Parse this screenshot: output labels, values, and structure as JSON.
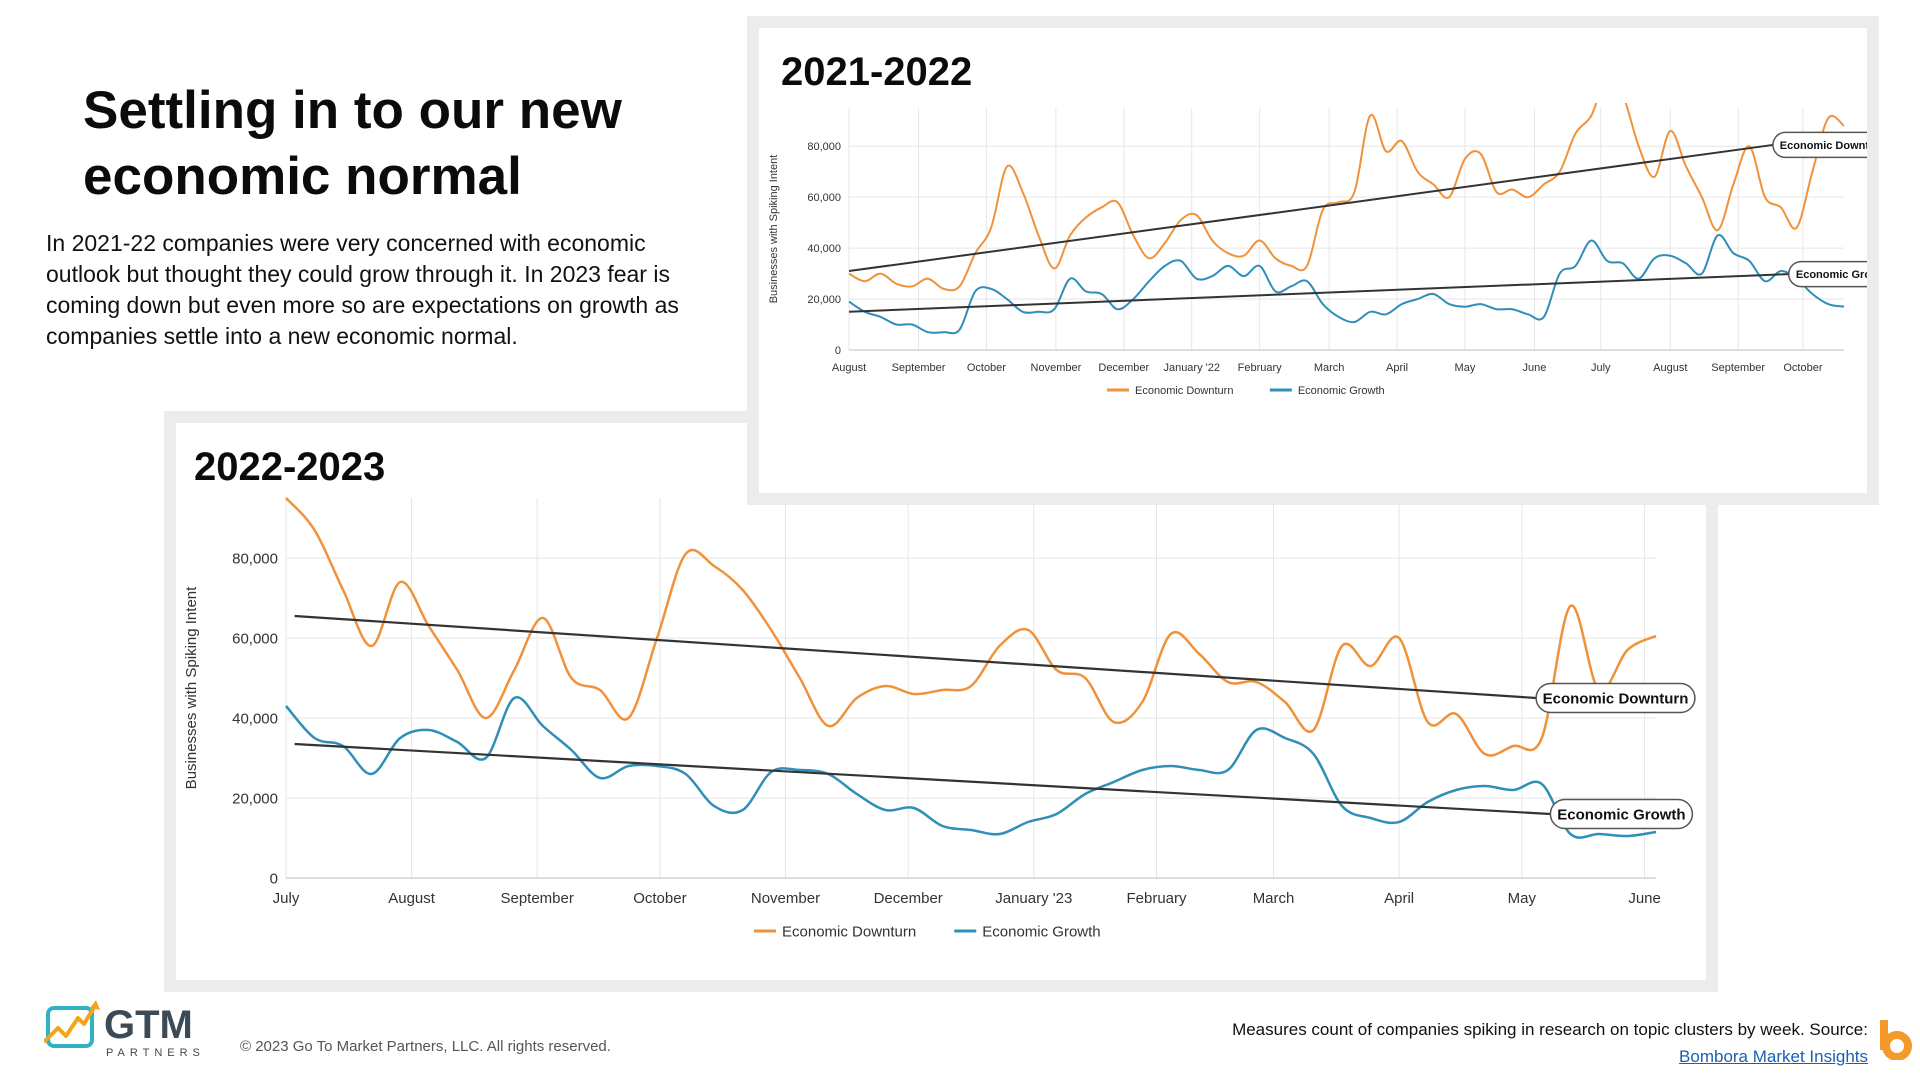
{
  "slide": {
    "title": "Settling in to our new economic normal",
    "description": "In 2021-22 companies were very concerned with economic outlook but thought they could grow through it. In 2023 fear is coming down but even more so are expectations on growth as companies settle into a new economic normal.",
    "copyright": "© 2023 Go To Market Partners, LLC. All rights reserved.",
    "source_text": "Measures count of companies spiking in research on topic clusters by week. Source: ",
    "source_link": "Bombora Market Insights",
    "logo": {
      "brand": "GTM",
      "sub": "PARTNERS"
    },
    "colors": {
      "downturn": "#f0923b",
      "growth": "#2f8fb8",
      "trend": "#333333",
      "accent_logo": "#f5a31a"
    }
  },
  "chart_data": [
    {
      "panel_label": "2022-2023",
      "type": "line",
      "ylabel": "Businesses with Spiking Intent",
      "ylim": [
        0,
        95000
      ],
      "yticks": [
        "0",
        "20,000",
        "40,000",
        "60,000",
        "80,000"
      ],
      "ytick_values": [
        0,
        20000,
        40000,
        60000,
        80000
      ],
      "x_labels": [
        "July",
        "August",
        "September",
        "October",
        "November",
        "December",
        "January '23",
        "February",
        "March",
        "April",
        "May",
        "June"
      ],
      "x_label_weeks": [
        0,
        4.4,
        8.8,
        13.1,
        17.5,
        21.8,
        26.2,
        30.5,
        34.6,
        39.0,
        43.3,
        47.6
      ],
      "weeks": [
        0,
        1,
        2,
        3,
        4,
        5,
        6,
        7,
        8,
        9,
        10,
        11,
        12,
        13,
        14,
        15,
        16,
        17,
        18,
        19,
        20,
        21,
        22,
        23,
        24,
        25,
        26,
        27,
        28,
        29,
        30,
        31,
        32,
        33,
        34,
        35,
        36,
        37,
        38,
        39,
        40,
        41,
        42,
        43,
        44,
        45,
        46,
        47,
        48
      ],
      "series": [
        {
          "name": "Economic Downturn",
          "values": [
            95000,
            87000,
            72000,
            58000,
            74000,
            63000,
            52000,
            40000,
            52000,
            65000,
            50000,
            47000,
            40000,
            60000,
            81000,
            78000,
            72000,
            62000,
            50000,
            38000,
            45000,
            48000,
            46000,
            47000,
            48000,
            58000,
            62000,
            52000,
            50000,
            39000,
            44000,
            61000,
            56000,
            49000,
            49000,
            44000,
            37000,
            58000,
            53000,
            60000,
            39000,
            41000,
            31000,
            33000,
            35000,
            68000,
            47000,
            57000,
            60500
          ]
        },
        {
          "name": "Economic Growth",
          "values": [
            43000,
            35000,
            33000,
            26000,
            35000,
            37000,
            34000,
            30000,
            45000,
            38000,
            32000,
            25000,
            28000,
            28000,
            26000,
            18000,
            17000,
            26500,
            27000,
            26000,
            21000,
            17000,
            17500,
            13000,
            12000,
            11000,
            14000,
            16000,
            21000,
            24000,
            27000,
            28000,
            27000,
            27000,
            37000,
            35000,
            31000,
            18000,
            15000,
            14000,
            19000,
            22000,
            23000,
            22000,
            23500,
            11000,
            11000,
            10500,
            11500
          ]
        }
      ],
      "trendlines": [
        {
          "name": "Economic Downturn",
          "label": "Economic Downturn",
          "from": [
            0.3,
            65500
          ],
          "to": [
            43.8,
            45000
          ]
        },
        {
          "name": "Economic Growth",
          "label": "Economic Growth",
          "from": [
            0.3,
            33500
          ],
          "to": [
            44.3,
            16000
          ]
        }
      ],
      "legend": [
        "Economic Downturn",
        "Economic Growth"
      ],
      "legend_placement": "bottom-center",
      "grid": true
    },
    {
      "panel_label": "2021-2022",
      "type": "line",
      "ylabel": "Businesses with Spiking Intent",
      "ylim": [
        0,
        95000
      ],
      "yticks": [
        "0",
        "20,000",
        "40,000",
        "60,000",
        "80,000"
      ],
      "ytick_values": [
        0,
        20000,
        40000,
        60000,
        80000
      ],
      "x_labels": [
        "August",
        "September",
        "October",
        "November",
        "December",
        "January '22",
        "February",
        "March",
        "April",
        "May",
        "June",
        "July",
        "August",
        "September",
        "October"
      ],
      "x_label_weeks": [
        0,
        4.4,
        8.7,
        13.1,
        17.4,
        21.7,
        26.0,
        30.4,
        34.7,
        39.0,
        43.4,
        47.6,
        52.0,
        56.3,
        60.4
      ],
      "weeks": [
        0,
        1,
        2,
        3,
        4,
        5,
        6,
        7,
        8,
        9,
        10,
        11,
        12,
        13,
        14,
        15,
        16,
        17,
        18,
        19,
        20,
        21,
        22,
        23,
        24,
        25,
        26,
        27,
        28,
        29,
        30,
        31,
        32,
        33,
        34,
        35,
        36,
        37,
        38,
        39,
        40,
        41,
        42,
        43,
        44,
        45,
        46,
        47,
        48,
        49,
        50,
        51,
        52,
        53,
        54,
        55,
        56,
        57,
        58,
        59,
        60,
        61,
        62,
        63
      ],
      "series": [
        {
          "name": "Economic Downturn",
          "values": [
            30000,
            27000,
            30000,
            26000,
            25000,
            28000,
            24000,
            25000,
            38000,
            48000,
            72000,
            62000,
            45000,
            32000,
            45000,
            52000,
            56000,
            58000,
            45000,
            36000,
            42000,
            51000,
            53000,
            43000,
            38000,
            37000,
            43000,
            36000,
            33000,
            33000,
            55000,
            58000,
            62000,
            92000,
            78000,
            82000,
            70000,
            65000,
            60000,
            75000,
            77000,
            62000,
            63000,
            60000,
            65000,
            70000,
            85000,
            92000,
            107000,
            100000,
            80000,
            68000,
            86000,
            72000,
            60000,
            47000,
            65000,
            80000,
            60000,
            56000,
            48000,
            70000,
            91000,
            88000
          ]
        },
        {
          "name": "Economic Growth",
          "values": [
            19000,
            15000,
            13000,
            10000,
            10000,
            7000,
            7000,
            8000,
            23000,
            24000,
            20000,
            15000,
            15000,
            16000,
            28000,
            23000,
            22000,
            16000,
            20000,
            27000,
            33000,
            35000,
            28000,
            29000,
            33000,
            29000,
            33000,
            23000,
            25000,
            27000,
            18000,
            13000,
            11000,
            15000,
            14000,
            18000,
            20000,
            22000,
            18000,
            17000,
            18000,
            16000,
            16000,
            14000,
            13000,
            30000,
            33000,
            43000,
            35000,
            34000,
            28000,
            36000,
            37000,
            34000,
            30000,
            45000,
            38000,
            35000,
            27000,
            31000,
            28000,
            22000,
            18000,
            17000
          ]
        }
      ],
      "trendlines": [
        {
          "name": "Economic Downturn",
          "label": "Economic Downturn",
          "from": [
            0,
            31000
          ],
          "to": [
            58.5,
            80500
          ]
        },
        {
          "name": "Economic Growth",
          "label": "Economic Growth",
          "from": [
            0,
            15000
          ],
          "to": [
            59.5,
            29800
          ]
        }
      ],
      "legend": [
        "Economic Downturn",
        "Economic Growth"
      ],
      "legend_placement": "bottom-center",
      "grid": true
    }
  ]
}
